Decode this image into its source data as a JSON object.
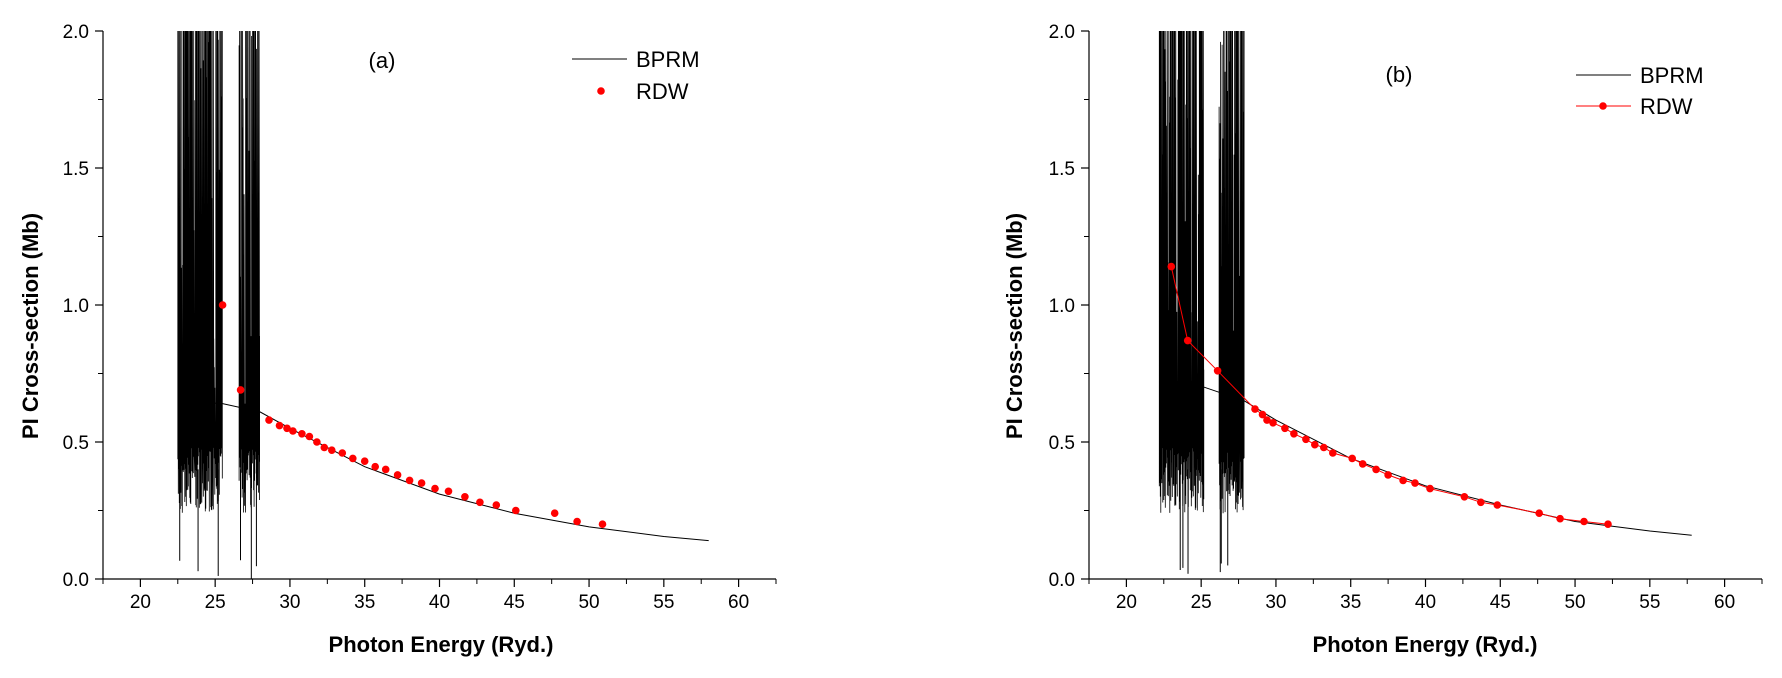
{
  "chart_data": [
    {
      "type": "line",
      "panel_label": "(a)",
      "xlabel": "Photon Energy (Ryd.)",
      "ylabel": "PI Cross-section (Mb)",
      "xlim": [
        17.5,
        62.5
      ],
      "ylim": [
        0,
        2.0
      ],
      "xticks": [
        20,
        25,
        30,
        35,
        40,
        45,
        50,
        55,
        60
      ],
      "yticks": [
        0.0,
        0.5,
        1.0,
        1.5,
        2.0
      ],
      "ytick_labels": [
        "0.0",
        "0.5",
        "1.0",
        "1.5",
        "2.0"
      ],
      "legend": {
        "placement": "top-right",
        "entries": [
          "BPRM",
          "RDW"
        ]
      },
      "series": [
        {
          "name": "BPRM",
          "style": "line",
          "color": "#000000",
          "resonance_regions": [
            {
              "x_start": 22.5,
              "x_end": 25.5,
              "y_min": 0.4,
              "y_max": 2.0
            },
            {
              "x_start": 26.6,
              "x_end": 28.0,
              "y_min": 0.4,
              "y_max": 2.0
            }
          ],
          "background": {
            "x": [
              22.5,
              25.5,
              28.0,
              30,
              35,
              40,
              45,
              50,
              55,
              58
            ],
            "y": [
              0.65,
              0.64,
              0.61,
              0.55,
              0.41,
              0.31,
              0.24,
              0.19,
              0.155,
              0.14
            ]
          }
        },
        {
          "name": "RDW",
          "style": "markers",
          "color": "#ff0000",
          "x": [
            25.5,
            26.7,
            28.6,
            29.3,
            29.8,
            30.2,
            30.8,
            31.3,
            31.8,
            32.3,
            32.8,
            33.5,
            34.2,
            35.0,
            35.7,
            36.4,
            37.2,
            38.0,
            38.8,
            39.7,
            40.6,
            41.7,
            42.7,
            43.8,
            45.1,
            47.7,
            49.2,
            50.9
          ],
          "y": [
            1.0,
            0.69,
            0.58,
            0.56,
            0.55,
            0.54,
            0.53,
            0.52,
            0.5,
            0.48,
            0.47,
            0.46,
            0.44,
            0.43,
            0.41,
            0.4,
            0.38,
            0.36,
            0.35,
            0.33,
            0.32,
            0.3,
            0.28,
            0.27,
            0.25,
            0.24,
            0.21,
            0.2
          ]
        }
      ]
    },
    {
      "type": "line",
      "panel_label": "(b)",
      "xlabel": "Photon Energy (Ryd.)",
      "ylabel": "PI Cross-section (Mb)",
      "xlim": [
        17.5,
        62.5
      ],
      "ylim": [
        0,
        2.0
      ],
      "xticks": [
        20,
        25,
        30,
        35,
        40,
        45,
        50,
        55,
        60
      ],
      "yticks": [
        0.0,
        0.5,
        1.0,
        1.5,
        2.0
      ],
      "ytick_labels": [
        "0.0",
        "0.5",
        "1.0",
        "1.5",
        "2.0"
      ],
      "legend": {
        "placement": "top-right",
        "entries": [
          "BPRM",
          "RDW"
        ]
      },
      "series": [
        {
          "name": "BPRM",
          "style": "line",
          "color": "#000000",
          "resonance_regions": [
            {
              "x_start": 22.2,
              "x_end": 25.2,
              "y_min": 0.4,
              "y_max": 2.0
            },
            {
              "x_start": 26.2,
              "x_end": 27.9,
              "y_min": 0.4,
              "y_max": 2.0
            }
          ],
          "background": {
            "x": [
              22.2,
              25.2,
              27.9,
              30,
              35,
              40,
              45,
              50,
              55,
              57.8
            ],
            "y": [
              0.72,
              0.7,
              0.65,
              0.58,
              0.44,
              0.34,
              0.27,
              0.21,
              0.175,
              0.16
            ]
          }
        },
        {
          "name": "RDW",
          "style": "line+markers",
          "color": "#ff0000",
          "x": [
            23.0,
            24.1,
            26.1,
            28.6,
            29.1,
            29.4,
            29.8,
            30.6,
            31.2,
            32.0,
            32.6,
            33.2,
            33.8,
            35.1,
            35.8,
            36.7,
            37.5,
            38.5,
            39.3,
            40.3,
            42.6,
            43.7,
            44.8,
            47.6,
            49.0,
            50.6,
            52.2
          ],
          "y": [
            1.14,
            0.87,
            0.76,
            0.62,
            0.6,
            0.58,
            0.57,
            0.55,
            0.53,
            0.51,
            0.49,
            0.48,
            0.46,
            0.44,
            0.42,
            0.4,
            0.38,
            0.36,
            0.35,
            0.33,
            0.3,
            0.28,
            0.27,
            0.24,
            0.22,
            0.21,
            0.2
          ]
        }
      ]
    }
  ]
}
